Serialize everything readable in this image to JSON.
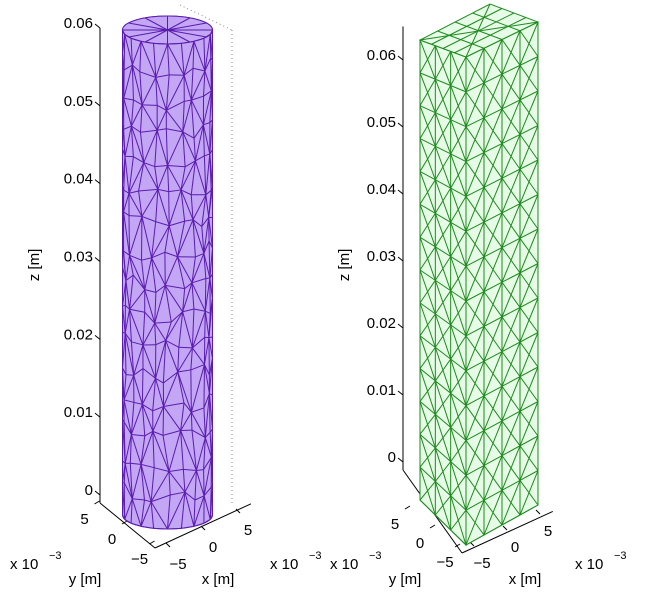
{
  "chart_data": [
    {
      "type": "cylinder",
      "zlabel": "z [m]",
      "xlabel": "x [m]",
      "ylabel": "y [m]",
      "x_scale": {
        "base": "x 10",
        "exponent": "−3"
      },
      "y_scale": {
        "base": "x 10",
        "exponent": "−3"
      },
      "color": "#c3a6f4",
      "edge_color": "#5a1cb0",
      "zlim": [
        0,
        0.06
      ],
      "zticks": [
        0,
        0.01,
        0.02,
        0.03,
        0.04,
        0.05,
        0.06
      ],
      "xticks": [
        {
          "value": -0.005,
          "label": "−5"
        },
        0,
        {
          "value": 0.005,
          "label": "5"
        }
      ],
      "yticks": [
        {
          "value": -0.005,
          "label": "−5"
        },
        0,
        {
          "value": 0.005,
          "label": "5"
        }
      ]
    },
    {
      "type": "box",
      "zlabel": "z [m]",
      "xlabel": "x [m]",
      "ylabel": "y [m]",
      "x_scale": {
        "base": "x 10",
        "exponent": "−3"
      },
      "y_scale": {
        "base": "x 10",
        "exponent": "−3"
      },
      "color": "#e6fce6",
      "edge_color": "#1f8a1f",
      "zlim": [
        0,
        0.065
      ],
      "zticks": [
        0,
        0.01,
        0.02,
        0.03,
        0.04,
        0.05,
        0.06
      ],
      "xticks": [
        {
          "value": -0.005,
          "label": "−5"
        },
        0,
        {
          "value": 0.005,
          "label": "5"
        }
      ],
      "yticks": [
        {
          "value": -0.005,
          "label": "−5"
        },
        0,
        {
          "value": 0.005,
          "label": "5"
        }
      ]
    }
  ]
}
